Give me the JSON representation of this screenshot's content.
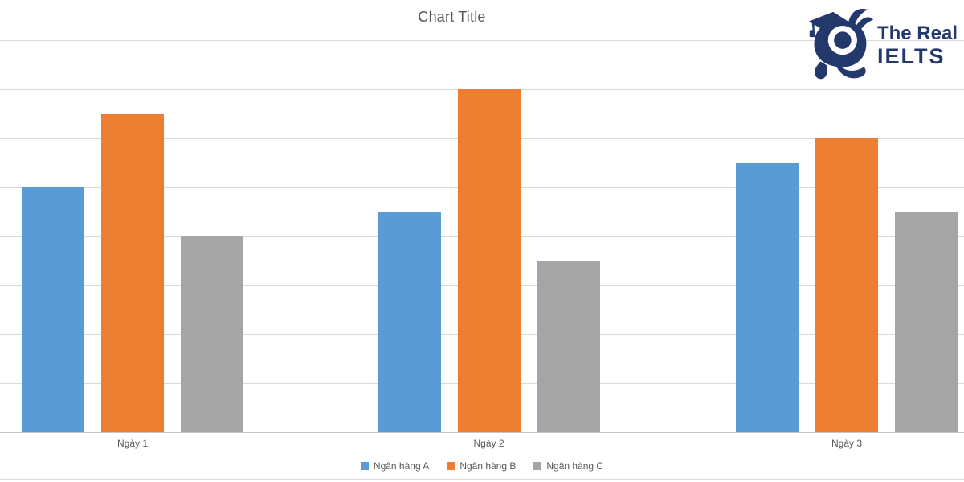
{
  "logo": {
    "line1": "The Real",
    "line2": "IELTS",
    "brand_color": "#24396B",
    "mascot": "running-graduate-mascot"
  },
  "chart_data": {
    "type": "bar",
    "title": "Chart Title",
    "categories": [
      "Ngày 1",
      "Ngày 2",
      "Ngày 3"
    ],
    "series": [
      {
        "name": "Ngân hàng A",
        "color": "#5B9BD5",
        "values": [
          50,
          45,
          55
        ]
      },
      {
        "name": "Ngân hàng B",
        "color": "#ED7D31",
        "values": [
          65,
          70,
          60
        ]
      },
      {
        "name": "Ngân hàng C",
        "color": "#A5A5A5",
        "values": [
          40,
          35,
          45
        ]
      }
    ],
    "xlabel": "",
    "ylabel": "",
    "ylim": [
      0,
      80
    ],
    "gridline_step": 10,
    "grid": true,
    "y_axis_labels_visible": false,
    "legend_position": "bottom",
    "gridline_color": "#D9D9D9",
    "axis_color": "#C6C6C6",
    "text_color": "#595959"
  }
}
